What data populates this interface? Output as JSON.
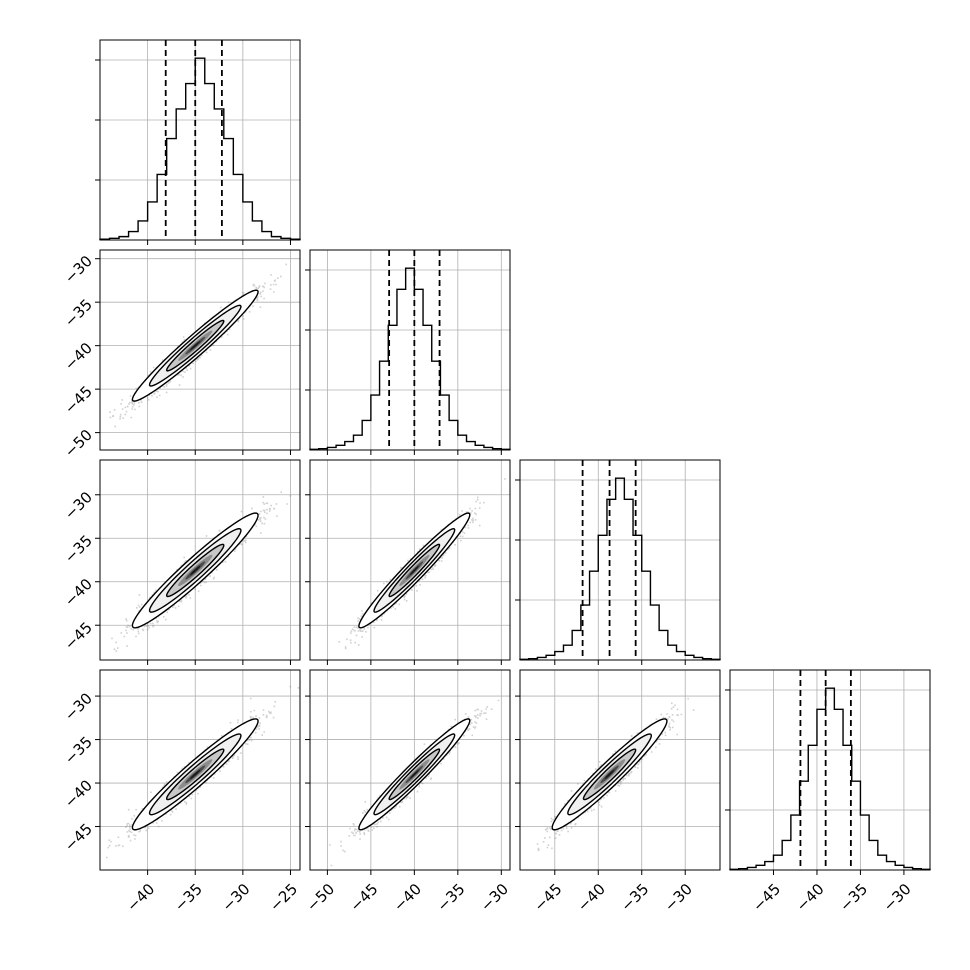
{
  "figure": {
    "type": "corner-plot",
    "parameters": 4,
    "grid": true
  },
  "chart_data": [
    {
      "type": "bar",
      "panel": "hist-1",
      "x_range": [
        -45,
        -24
      ],
      "bin_edges": [
        -45,
        -44,
        -43,
        -42,
        -41,
        -40,
        -39,
        -38,
        -37,
        -36,
        -35,
        -34,
        -33,
        -32,
        -31,
        -30,
        -29,
        -28,
        -27,
        -26,
        -25,
        -24
      ],
      "counts": [
        4,
        8,
        16,
        40,
        90,
        180,
        310,
        480,
        620,
        740,
        860,
        740,
        620,
        480,
        310,
        180,
        90,
        40,
        16,
        8,
        4
      ],
      "quantiles": [
        -38.1,
        -35.0,
        -32.2
      ],
      "xticks": [
        "-40",
        "-35",
        "-30",
        "-25"
      ]
    },
    {
      "type": "bar",
      "panel": "hist-2",
      "x_range": [
        -52,
        -29
      ],
      "bin_edges": [
        -52,
        -51,
        -50,
        -49,
        -48,
        -47,
        -46,
        -45,
        -44,
        -43,
        -42,
        -41,
        -40,
        -39,
        -38,
        -37,
        -36,
        -35,
        -34,
        -33,
        -32,
        -31,
        -30,
        -29
      ],
      "counts": [
        3,
        6,
        12,
        22,
        40,
        70,
        140,
        260,
        420,
        590,
        760,
        860,
        760,
        590,
        420,
        260,
        140,
        70,
        40,
        22,
        12,
        6,
        3
      ],
      "quantiles": [
        -42.9,
        -40.0,
        -37.1
      ],
      "xticks": [
        "-50",
        "-45",
        "-40",
        "-35",
        "-30"
      ]
    },
    {
      "type": "bar",
      "panel": "hist-3",
      "x_range": [
        -49,
        -26
      ],
      "bin_edges": [
        -49,
        -48,
        -47,
        -46,
        -45,
        -44,
        -43,
        -42,
        -41,
        -40,
        -39,
        -38,
        -37,
        -36,
        -35,
        -34,
        -33,
        -32,
        -31,
        -30,
        -29,
        -28,
        -27,
        -26
      ],
      "counts": [
        3,
        6,
        12,
        22,
        40,
        70,
        140,
        260,
        420,
        590,
        760,
        860,
        760,
        590,
        420,
        260,
        140,
        70,
        40,
        22,
        12,
        6,
        3
      ],
      "quantiles": [
        -41.8,
        -38.7,
        -35.7
      ],
      "xticks": [
        "-45",
        "-40",
        "-35",
        "-30"
      ]
    },
    {
      "type": "bar",
      "panel": "hist-4",
      "x_range": [
        -50,
        -27
      ],
      "bin_edges": [
        -50,
        -49,
        -48,
        -47,
        -46,
        -45,
        -44,
        -43,
        -42,
        -41,
        -40,
        -39,
        -38,
        -37,
        -36,
        -35,
        -34,
        -33,
        -32,
        -31,
        -30,
        -29,
        -28,
        -27
      ],
      "counts": [
        3,
        6,
        12,
        22,
        40,
        70,
        140,
        260,
        420,
        590,
        760,
        860,
        760,
        590,
        420,
        260,
        140,
        70,
        40,
        22,
        12,
        6,
        3
      ],
      "quantiles": [
        -41.9,
        -39.0,
        -36.1
      ],
      "xticks": [
        "-45",
        "-40",
        "-35",
        "-30"
      ]
    },
    {
      "type": "scatter",
      "panel": "scatter-2-1",
      "x_param": 1,
      "y_param": 2,
      "mean": [
        -35.0,
        -40.0
      ],
      "std": [
        3.0,
        2.9
      ],
      "correlation": 0.97,
      "yticks": [
        "-30",
        "-35",
        "-40",
        "-45",
        "-50"
      ]
    },
    {
      "type": "scatter",
      "panel": "scatter-3-1",
      "x_param": 1,
      "y_param": 3,
      "mean": [
        -35.0,
        -38.7
      ],
      "std": [
        3.0,
        3.0
      ],
      "correlation": 0.96,
      "yticks": [
        "-30",
        "-35",
        "-40",
        "-45"
      ]
    },
    {
      "type": "scatter",
      "panel": "scatter-3-2",
      "x_param": 2,
      "y_param": 3,
      "mean": [
        -40.0,
        -38.7
      ],
      "std": [
        2.9,
        3.0
      ],
      "correlation": 0.97,
      "yticks": []
    },
    {
      "type": "scatter",
      "panel": "scatter-4-1",
      "x_param": 1,
      "y_param": 4,
      "mean": [
        -35.0,
        -39.0
      ],
      "std": [
        3.0,
        2.9
      ],
      "correlation": 0.96,
      "yticks": [
        "-30",
        "-35",
        "-40",
        "-45"
      ]
    },
    {
      "type": "scatter",
      "panel": "scatter-4-2",
      "x_param": 2,
      "y_param": 4,
      "mean": [
        -40.0,
        -39.0
      ],
      "std": [
        2.9,
        2.9
      ],
      "correlation": 0.97,
      "yticks": []
    },
    {
      "type": "scatter",
      "panel": "scatter-4-3",
      "x_param": 3,
      "y_param": 4,
      "mean": [
        -38.7,
        -39.0
      ],
      "std": [
        3.0,
        2.9
      ],
      "correlation": 0.96,
      "yticks": []
    }
  ],
  "axes": {
    "ranges": [
      [
        -45,
        -24
      ],
      [
        -52,
        -29
      ],
      [
        -49,
        -26
      ],
      [
        -50,
        -27
      ]
    ],
    "diag_ticks": [
      [
        -40,
        -35,
        -30,
        -25
      ],
      [
        -50,
        -45,
        -40,
        -35,
        -30
      ],
      [
        -45,
        -40,
        -35,
        -30
      ],
      [
        -45,
        -40,
        -35,
        -30
      ]
    ],
    "diag_tick_labels": [
      [
        "-40",
        "-35",
        "-30",
        "-25"
      ],
      [
        "-50",
        "-45",
        "-40",
        "-35",
        "-30"
      ],
      [
        "-45",
        "-40",
        "-35",
        "-30"
      ],
      [
        "-45",
        "-40",
        "-35",
        "-30"
      ]
    ],
    "grid_ticks": [
      [
        -40,
        -35,
        -30,
        -25
      ],
      [
        -50,
        -45,
        -40,
        -35,
        -30
      ],
      [
        -45,
        -40,
        -35,
        -30
      ],
      [
        -45,
        -40,
        -35,
        -30
      ]
    ],
    "x_tick_labels": [
      [
        "-40",
        "-35",
        "-30",
        "-25"
      ],
      [
        "-50",
        "-45",
        "-40",
        "-35",
        "-30"
      ],
      [
        "-45",
        "-40",
        "-35",
        "-30"
      ],
      [
        "-45",
        "-40",
        "-35",
        "-30"
      ]
    ],
    "y_tick_labels": [
      [],
      [
        "-30",
        "-35",
        "-40",
        "-45",
        "-50"
      ],
      [
        "-30",
        "-35",
        "-40",
        "-45"
      ],
      [
        "-30",
        "-35",
        "-40",
        "-45"
      ]
    ]
  },
  "colors": {
    "line": "#000000",
    "grid": "#b0b0b0",
    "points": "#7a7a7a",
    "fill_levels": [
      "#ffffff",
      "#f0f0f0",
      "#c8c8c8",
      "#8c8c8c",
      "#4a4a4a",
      "#1a1a1a"
    ]
  }
}
